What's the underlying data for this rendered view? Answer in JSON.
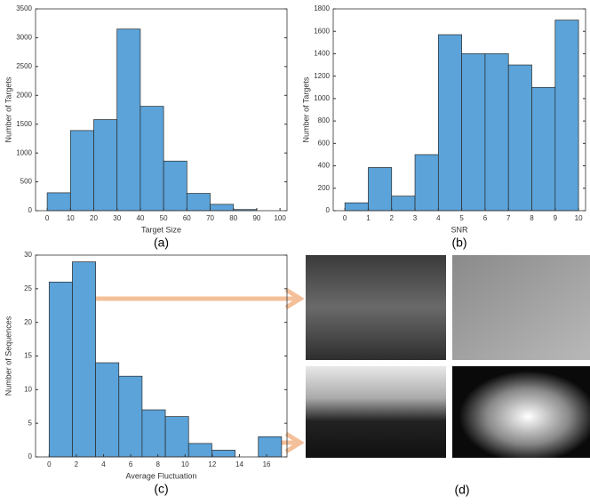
{
  "chart_data": [
    {
      "type": "histogram",
      "caption": "(a)",
      "xlabel": "Target Size",
      "ylabel": "Number of Targets",
      "bins": [
        0,
        10,
        20,
        30,
        40,
        50,
        60,
        70,
        80,
        90
      ],
      "values": [
        310,
        1390,
        1580,
        3150,
        1810,
        860,
        300,
        110,
        20
      ],
      "color": "#5ba3d9",
      "xlim": [
        -5,
        103
      ],
      "ylim": [
        0,
        3500
      ],
      "xticks": [
        0,
        10,
        20,
        30,
        40,
        50,
        60,
        70,
        80,
        90,
        100
      ],
      "yticks": [
        0,
        500,
        1000,
        1500,
        2000,
        2500,
        3000,
        3500
      ]
    },
    {
      "type": "histogram",
      "caption": "(b)",
      "xlabel": "SNR",
      "ylabel": "Number of Targets",
      "bins": [
        0,
        1,
        2,
        3,
        4,
        5,
        6,
        7,
        8,
        9,
        10
      ],
      "values": [
        70,
        385,
        130,
        500,
        1570,
        1400,
        1400,
        1300,
        1100,
        1700
      ],
      "color": "#5ba3d9",
      "xlim": [
        -0.5,
        10.3
      ],
      "ylim": [
        0,
        1800
      ],
      "xticks": [
        0,
        1,
        2,
        3,
        4,
        5,
        6,
        7,
        8,
        9,
        10
      ],
      "yticks": [
        0,
        200,
        400,
        600,
        800,
        1000,
        1200,
        1400,
        1600,
        1800
      ]
    },
    {
      "type": "histogram",
      "caption": "(c)",
      "xlabel": "Average Fluctuation",
      "ylabel": "Number of Sequences",
      "bins": [
        0,
        1.71,
        3.42,
        5.13,
        6.84,
        8.55,
        10.26,
        11.97,
        13.68,
        15.39,
        17.1
      ],
      "values": [
        26,
        29,
        14,
        12,
        7,
        6,
        2,
        1,
        0,
        3
      ],
      "color": "#5ba3d9",
      "xlim": [
        -1,
        17.5
      ],
      "ylim": [
        0,
        30
      ],
      "xticks": [
        0,
        2,
        4,
        6,
        8,
        10,
        12,
        14,
        16
      ],
      "yticks": [
        0,
        5,
        10,
        15,
        20,
        25,
        30
      ]
    }
  ],
  "images": {
    "caption": "(d)"
  }
}
